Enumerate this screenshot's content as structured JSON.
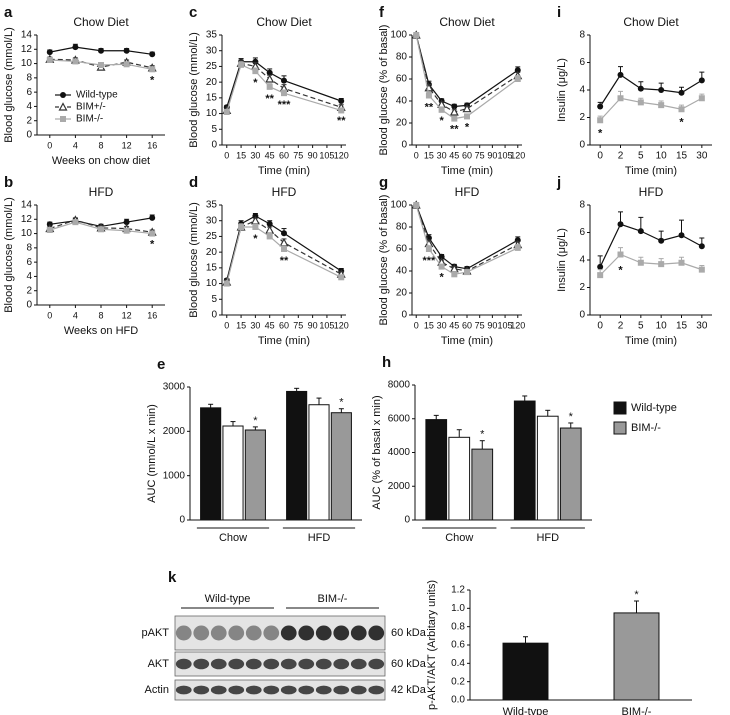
{
  "chart_data": [
    {
      "type": "line",
      "panel": "a",
      "title": "Chow Diet",
      "ylabel": "Blood glucose (mmol/L)",
      "xlabel": "Weeks on chow diet",
      "x": [
        0,
        4,
        8,
        12,
        16
      ],
      "xlim": [
        -2,
        18
      ],
      "xticks": [
        0,
        4,
        8,
        12,
        16
      ],
      "ylim": [
        0,
        14
      ],
      "yticks": [
        0,
        2,
        4,
        6,
        8,
        10,
        12,
        14
      ],
      "legend": "inside",
      "series": [
        {
          "name": "Wild-type",
          "color": "#111111",
          "marker": "circle",
          "dashed": false,
          "values": [
            11.6,
            12.3,
            11.8,
            11.8,
            11.3
          ],
          "errors": [
            0.3,
            0.4,
            0.3,
            0.3,
            0.3
          ]
        },
        {
          "name": "BIM+/-",
          "color": "#333333",
          "marker": "triangle",
          "dashed": true,
          "values": [
            10.6,
            10.5,
            9.5,
            10.2,
            9.4
          ],
          "errors": [
            0.3,
            0.3,
            0.3,
            0.3,
            0.3
          ]
        },
        {
          "name": "BIM-/-",
          "color": "#aaaaaa",
          "marker": "square",
          "dashed": false,
          "values": [
            10.5,
            10.3,
            9.8,
            9.9,
            9.2
          ],
          "errors": [
            0.3,
            0.3,
            0.3,
            0.3,
            0.3
          ],
          "significance": [
            null,
            null,
            null,
            null,
            "*"
          ]
        }
      ]
    },
    {
      "type": "line",
      "panel": "c",
      "title": "Chow Diet",
      "ylabel": "Blood glucose (mmol/L)",
      "xlabel": "Time (min)",
      "x": [
        0,
        15,
        30,
        45,
        60,
        120
      ],
      "xlim": [
        -5,
        125
      ],
      "xticks": [
        0,
        15,
        30,
        45,
        60,
        75,
        90,
        105,
        120
      ],
      "ylim": [
        0,
        35
      ],
      "yticks": [
        0,
        5,
        10,
        15,
        20,
        25,
        30,
        35
      ],
      "series": [
        {
          "color": "#111111",
          "marker": "circle",
          "dashed": false,
          "values": [
            12,
            26.5,
            26.5,
            23,
            20.5,
            14
          ],
          "errors": [
            0.6,
            1,
            1.2,
            1.2,
            1.5,
            0.8
          ]
        },
        {
          "color": "#333333",
          "marker": "triangle",
          "dashed": true,
          "values": [
            11,
            26,
            25,
            21,
            18,
            12
          ],
          "errors": [
            0.6,
            1,
            1.2,
            1.2,
            1.2,
            0.8
          ]
        },
        {
          "color": "#aaaaaa",
          "marker": "square",
          "dashed": false,
          "values": [
            10.5,
            25.5,
            23.5,
            18.5,
            16.5,
            11
          ],
          "errors": [
            0.6,
            1,
            1,
            1,
            1,
            0.6
          ],
          "significance": [
            null,
            null,
            "*",
            "**",
            "***",
            "**"
          ]
        }
      ]
    },
    {
      "type": "line",
      "panel": "f",
      "title": "Chow Diet",
      "ylabel": "Blood glucose (% of basal)",
      "xlabel": "Time (min)",
      "x": [
        0,
        15,
        30,
        45,
        60,
        120
      ],
      "xlim": [
        -5,
        125
      ],
      "xticks": [
        0,
        15,
        30,
        45,
        60,
        75,
        90,
        105,
        120
      ],
      "ylim": [
        0,
        100
      ],
      "yticks": [
        0,
        20,
        40,
        60,
        80,
        100
      ],
      "series": [
        {
          "color": "#111111",
          "marker": "circle",
          "dashed": false,
          "values": [
            100,
            55,
            40,
            35,
            36,
            68
          ],
          "errors": [
            0,
            3,
            2,
            2,
            2,
            3
          ]
        },
        {
          "color": "#333333",
          "marker": "triangle",
          "dashed": true,
          "values": [
            100,
            52,
            37,
            30,
            33,
            63
          ],
          "errors": [
            0,
            3,
            2,
            2,
            2,
            3
          ]
        },
        {
          "color": "#aaaaaa",
          "marker": "square",
          "dashed": false,
          "values": [
            100,
            45,
            32,
            24,
            26,
            60
          ],
          "errors": [
            0,
            3,
            2,
            2,
            2,
            3
          ],
          "significance": [
            null,
            "**",
            "*",
            "**",
            "*",
            null
          ]
        }
      ]
    },
    {
      "type": "line",
      "panel": "i",
      "title": "Chow Diet",
      "ylabel": "Insulin (μg/L)",
      "xlabel": "Time (min)",
      "categories": [
        "0",
        "2",
        "5",
        "10",
        "15",
        "30"
      ],
      "ylim": [
        0,
        8
      ],
      "yticks": [
        0,
        2,
        4,
        6,
        8
      ],
      "series": [
        {
          "color": "#111111",
          "marker": "circle",
          "dashed": false,
          "values": [
            2.8,
            5.1,
            4.1,
            4.0,
            3.8,
            4.7
          ],
          "errors": [
            0.3,
            0.6,
            0.5,
            0.5,
            0.4,
            0.6
          ]
        },
        {
          "color": "#aaaaaa",
          "marker": "square",
          "dashed": false,
          "values": [
            1.8,
            3.4,
            3.1,
            2.9,
            2.6,
            3.4
          ],
          "errors": [
            0.3,
            0.5,
            0.3,
            0.3,
            0.3,
            0.3
          ],
          "significance": [
            "*",
            null,
            null,
            null,
            "*",
            null
          ]
        }
      ]
    },
    {
      "type": "line",
      "panel": "b",
      "title": "HFD",
      "ylabel": "Blood glucose (mmol/L)",
      "xlabel": "Weeks on HFD",
      "x": [
        0,
        4,
        8,
        12,
        16
      ],
      "xlim": [
        -2,
        18
      ],
      "xticks": [
        0,
        4,
        8,
        12,
        16
      ],
      "ylim": [
        0,
        14
      ],
      "yticks": [
        0,
        2,
        4,
        6,
        8,
        10,
        12,
        14
      ],
      "series": [
        {
          "color": "#111111",
          "marker": "circle",
          "dashed": false,
          "values": [
            11.3,
            11.8,
            11.0,
            11.6,
            12.2
          ],
          "errors": [
            0.3,
            0.3,
            0.3,
            0.4,
            0.4
          ]
        },
        {
          "color": "#333333",
          "marker": "triangle",
          "dashed": true,
          "values": [
            10.7,
            11.9,
            10.8,
            10.7,
            10.2
          ],
          "errors": [
            0.3,
            0.3,
            0.3,
            0.3,
            0.3
          ]
        },
        {
          "color": "#aaaaaa",
          "marker": "square",
          "dashed": false,
          "values": [
            10.5,
            11.6,
            10.6,
            10.4,
            10.0
          ],
          "errors": [
            0.3,
            0.3,
            0.3,
            0.3,
            0.3
          ],
          "significance": [
            null,
            null,
            null,
            null,
            "*"
          ]
        }
      ]
    },
    {
      "type": "line",
      "panel": "d",
      "title": "HFD",
      "ylabel": "Blood glucose (mmol/L)",
      "xlabel": "Time (min)",
      "x": [
        0,
        15,
        30,
        45,
        60,
        120
      ],
      "xlim": [
        -5,
        125
      ],
      "xticks": [
        0,
        15,
        30,
        45,
        60,
        75,
        90,
        105,
        120
      ],
      "ylim": [
        0,
        35
      ],
      "yticks": [
        0,
        5,
        10,
        15,
        20,
        25,
        30,
        35
      ],
      "series": [
        {
          "color": "#111111",
          "marker": "circle",
          "dashed": false,
          "values": [
            11,
            29,
            31.5,
            29,
            26,
            14
          ],
          "errors": [
            0.6,
            1,
            0.8,
            1,
            1.5,
            0.8
          ]
        },
        {
          "color": "#333333",
          "marker": "triangle",
          "dashed": true,
          "values": [
            10.5,
            28,
            30,
            27,
            23,
            13
          ],
          "errors": [
            0.6,
            1,
            0.8,
            1,
            1.2,
            0.8
          ]
        },
        {
          "color": "#aaaaaa",
          "marker": "square",
          "dashed": false,
          "values": [
            10,
            28,
            28,
            25,
            21,
            12
          ],
          "errors": [
            0.6,
            1,
            1,
            1,
            1,
            0.6
          ],
          "significance": [
            null,
            null,
            "*",
            null,
            "**",
            null
          ]
        }
      ]
    },
    {
      "type": "line",
      "panel": "g",
      "title": "HFD",
      "ylabel": "Blood glucose (% of basal)",
      "xlabel": "Time (min)",
      "x": [
        0,
        15,
        30,
        45,
        60,
        120
      ],
      "xlim": [
        -5,
        125
      ],
      "xticks": [
        0,
        15,
        30,
        45,
        60,
        75,
        90,
        105,
        120
      ],
      "ylim": [
        0,
        100
      ],
      "yticks": [
        0,
        20,
        40,
        60,
        80,
        100
      ],
      "series": [
        {
          "color": "#111111",
          "marker": "circle",
          "dashed": false,
          "values": [
            100,
            70,
            53,
            44,
            42,
            68
          ],
          "errors": [
            0,
            3,
            2,
            2,
            2,
            3
          ]
        },
        {
          "color": "#333333",
          "marker": "triangle",
          "dashed": true,
          "values": [
            100,
            65,
            48,
            42,
            40,
            64
          ],
          "errors": [
            0,
            3,
            2,
            2,
            2,
            3
          ]
        },
        {
          "color": "#aaaaaa",
          "marker": "square",
          "dashed": false,
          "values": [
            100,
            60,
            44,
            37,
            39,
            61
          ],
          "errors": [
            0,
            3,
            2,
            2,
            2,
            3
          ],
          "significance": [
            null,
            "***",
            "*",
            null,
            null,
            null
          ]
        }
      ]
    },
    {
      "type": "line",
      "panel": "j",
      "title": "HFD",
      "ylabel": "Insulin (μg/L)",
      "xlabel": "Time (min)",
      "categories": [
        "0",
        "2",
        "5",
        "10",
        "15",
        "30"
      ],
      "ylim": [
        0,
        8
      ],
      "yticks": [
        0,
        2,
        4,
        6,
        8
      ],
      "series": [
        {
          "color": "#111111",
          "marker": "circle",
          "dashed": false,
          "values": [
            3.5,
            6.6,
            6.1,
            5.4,
            5.8,
            5.0
          ],
          "errors": [
            0.8,
            0.9,
            1.0,
            0.7,
            1.1,
            0.6
          ]
        },
        {
          "color": "#aaaaaa",
          "marker": "square",
          "dashed": false,
          "values": [
            2.9,
            4.4,
            3.8,
            3.7,
            3.8,
            3.3
          ],
          "errors": [
            0.4,
            0.5,
            0.4,
            0.4,
            0.4,
            0.3
          ],
          "significance": [
            null,
            "*",
            null,
            null,
            null,
            null
          ]
        }
      ]
    },
    {
      "type": "bar",
      "panel": "e",
      "ylabel": "AUC (mmol/L x min)",
      "categories": [
        "Chow",
        "HFD"
      ],
      "ylim": [
        0,
        3000
      ],
      "yticks": [
        0,
        1000,
        2000,
        3000
      ],
      "groups": true,
      "series": [
        {
          "color": "#111111",
          "values": [
            2530,
            2900
          ],
          "errors": [
            80,
            70
          ]
        },
        {
          "color": "#ffffff",
          "values": [
            2120,
            2600
          ],
          "errors": [
            100,
            150
          ]
        },
        {
          "color": "#999999",
          "values": [
            2030,
            2420
          ],
          "errors": [
            70,
            90
          ],
          "significance": [
            "*",
            "*"
          ]
        }
      ]
    },
    {
      "type": "bar",
      "panel": "h",
      "ylabel": "AUC (% of basal x min)",
      "categories": [
        "Chow",
        "HFD"
      ],
      "ylim": [
        0,
        8000
      ],
      "yticks": [
        0,
        2000,
        4000,
        6000,
        8000
      ],
      "groups": true,
      "legend": "right",
      "series": [
        {
          "name": "Wild-type",
          "color": "#111111",
          "values": [
            5950,
            7050
          ],
          "errors": [
            250,
            300
          ]
        },
        {
          "color": "#ffffff",
          "values": [
            4900,
            6150
          ],
          "errors": [
            450,
            350
          ]
        },
        {
          "name": "BIM-/-",
          "color": "#999999",
          "values": [
            4200,
            5450
          ],
          "errors": [
            500,
            300
          ],
          "significance": [
            "*",
            "*"
          ]
        }
      ]
    },
    {
      "type": "bar",
      "ylabel": "p-AKT/AKT (Arbitary units)",
      "categories": [
        "Wild-type",
        "BIM-/-"
      ],
      "ylim": [
        0,
        1.2
      ],
      "yticks": [
        {
          "value": 0,
          "label": "0.0"
        },
        0.2,
        0.4,
        0.6,
        0.8,
        {
          "value": 1,
          "label": "1.0"
        },
        1.2
      ],
      "series": [
        {
          "colors": [
            "#111111",
            "#999999"
          ],
          "values": [
            0.62,
            0.95
          ],
          "errors": [
            0.07,
            0.13
          ],
          "significance": [
            null,
            "*"
          ]
        }
      ]
    }
  ],
  "blot": {
    "panel": "k",
    "groups": [
      "Wild-type",
      "BIM-/-"
    ],
    "rows": [
      {
        "label": "pAKT",
        "size": "60 kDa"
      },
      {
        "label": "AKT",
        "size": "60 kDa"
      },
      {
        "label": "Actin",
        "size": "42 kDa"
      }
    ]
  }
}
